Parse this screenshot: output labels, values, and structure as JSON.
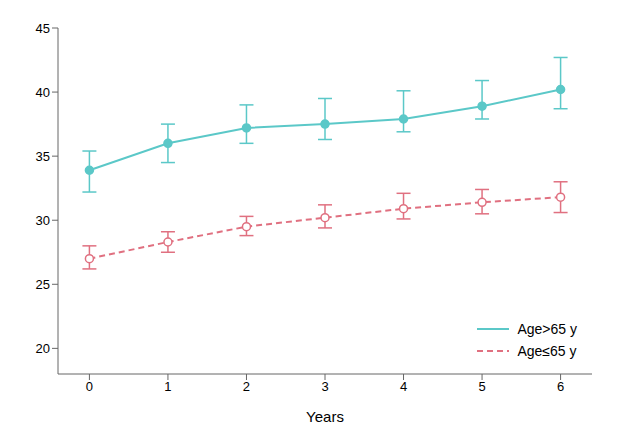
{
  "chart_data": {
    "type": "line",
    "x": [
      0,
      1,
      2,
      3,
      4,
      5,
      6
    ],
    "xlim": [
      -0.4,
      6.4
    ],
    "xticks": [
      0,
      1,
      2,
      3,
      4,
      5,
      6
    ],
    "ylim": [
      18,
      45
    ],
    "yticks": [
      20,
      25,
      30,
      35,
      40,
      45
    ],
    "xlabel": "Years",
    "legend": "lower right",
    "grid": false,
    "series": [
      {
        "name": "Age>65 y",
        "color": "#5BC8C8",
        "line_style": "solid",
        "marker": "filled circle",
        "values": [
          33.9,
          36.0,
          37.2,
          37.5,
          37.9,
          38.9,
          40.2
        ],
        "yerr_lower": [
          1.7,
          1.5,
          1.2,
          1.2,
          1.0,
          1.0,
          1.5
        ],
        "yerr_upper": [
          1.5,
          1.5,
          1.8,
          2.0,
          2.2,
          2.0,
          2.5
        ]
      },
      {
        "name": "Age≤65 y",
        "color": "#E07080",
        "line_style": "dashed",
        "marker": "open circle",
        "values": [
          27.0,
          28.3,
          29.5,
          30.2,
          30.9,
          31.4,
          31.8
        ],
        "yerr_lower": [
          0.8,
          0.8,
          0.7,
          0.8,
          0.8,
          0.9,
          1.2
        ],
        "yerr_upper": [
          1.0,
          0.8,
          0.8,
          1.0,
          1.2,
          1.0,
          1.2
        ]
      }
    ]
  }
}
